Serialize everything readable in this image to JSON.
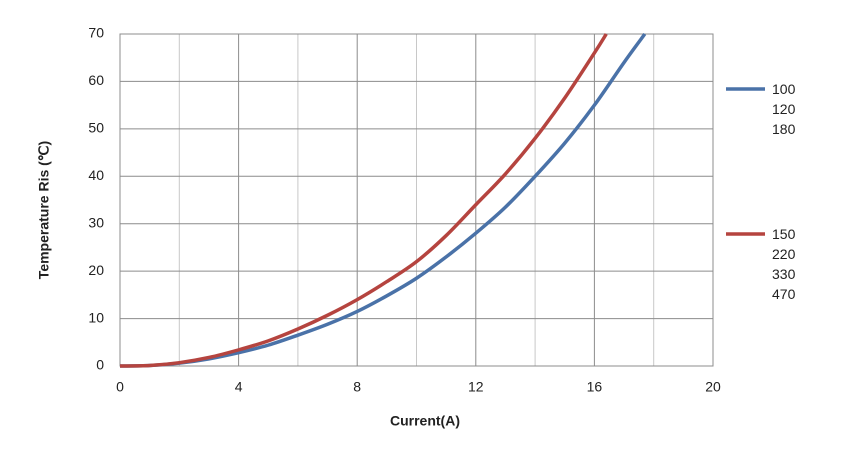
{
  "chart_data": {
    "type": "line",
    "xlabel": "Current(A)",
    "ylabel": "Temperature Ris (℃)",
    "xlim": [
      0,
      20
    ],
    "xticks": [
      0,
      4,
      8,
      12,
      16,
      20
    ],
    "xminorticks": [
      2,
      6,
      10,
      14,
      18
    ],
    "ylim": [
      0,
      70
    ],
    "yticks": [
      0,
      10,
      20,
      30,
      40,
      50,
      60,
      70
    ],
    "grid": true,
    "legend": "right",
    "series": [
      {
        "name": "100\n120\n180",
        "color": "#4a72a8",
        "x": [
          0,
          1,
          2,
          3,
          4,
          5,
          6,
          7,
          8,
          9,
          10,
          11,
          12,
          13,
          14,
          15,
          16,
          17,
          17.7
        ],
        "values": [
          0,
          0.1,
          0.6,
          1.5,
          2.8,
          4.4,
          6.5,
          8.8,
          11.5,
          14.8,
          18.5,
          23,
          28,
          33.5,
          40,
          47,
          55,
          64,
          70
        ]
      },
      {
        "name": "150\n220\n330\n470",
        "color": "#b5443f",
        "x": [
          0,
          1,
          2,
          3,
          4,
          5,
          6,
          7,
          8,
          9,
          10,
          11,
          12,
          13,
          14,
          15,
          16,
          16.4
        ],
        "values": [
          0,
          0.1,
          0.7,
          1.8,
          3.4,
          5.3,
          7.8,
          10.7,
          14,
          17.8,
          22,
          27.5,
          34,
          40.5,
          48,
          56.5,
          66,
          70
        ]
      }
    ]
  }
}
